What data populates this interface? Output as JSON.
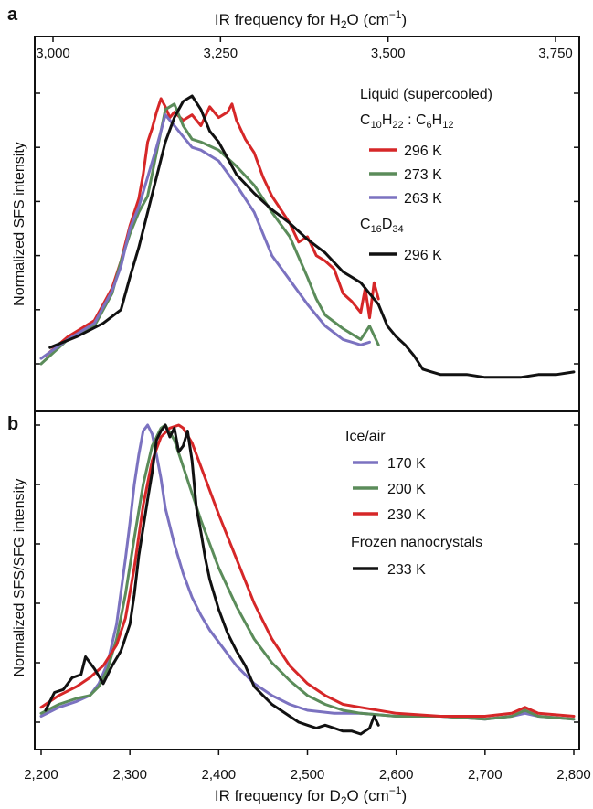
{
  "chart_data": [
    {
      "panel_label": "a",
      "type": "line",
      "top_axis_label": "IR frequency for H2O (cm−1)",
      "top_ticks": [
        "3,000",
        "3,250",
        "3,500",
        "3,750"
      ],
      "top_tick_values": [
        3000,
        3250,
        3500,
        3750
      ],
      "ylabel": "Normalized SFS intensity",
      "xlim": [
        2200,
        2800
      ],
      "ylim": [
        0,
        1.05
      ],
      "legend": {
        "heading1": "Liquid (supercooled)",
        "heading2": {
          "a": "C",
          "a_sub": "10",
          "b": "H",
          "b_sub": "22",
          "c": " : C",
          "c_sub": "6",
          "d": "H",
          "d_sub": "12"
        },
        "heading3": {
          "a": "C",
          "a_sub": "16",
          "b": "D",
          "b_sub": "34"
        }
      },
      "series": [
        {
          "name": "296 K",
          "color": "#d62728",
          "x": [
            2205,
            2230,
            2260,
            2280,
            2290,
            2300,
            2310,
            2315,
            2320,
            2325,
            2330,
            2335,
            2340,
            2345,
            2350,
            2360,
            2370,
            2380,
            2390,
            2400,
            2410,
            2415,
            2420,
            2430,
            2440,
            2450,
            2460,
            2470,
            2480,
            2490,
            2500,
            2510,
            2520,
            2530,
            2540,
            2550,
            2560,
            2565,
            2570,
            2575,
            2580
          ],
          "y": [
            0.03,
            0.1,
            0.16,
            0.28,
            0.38,
            0.51,
            0.61,
            0.7,
            0.82,
            0.87,
            0.93,
            0.98,
            0.95,
            0.91,
            0.93,
            0.9,
            0.92,
            0.88,
            0.95,
            0.91,
            0.93,
            0.96,
            0.9,
            0.83,
            0.78,
            0.69,
            0.62,
            0.57,
            0.52,
            0.45,
            0.47,
            0.4,
            0.38,
            0.35,
            0.26,
            0.23,
            0.19,
            0.28,
            0.17,
            0.3,
            0.24
          ]
        },
        {
          "name": "273 K",
          "color": "#5b8c5a",
          "x": [
            2200,
            2230,
            2260,
            2280,
            2290,
            2300,
            2310,
            2320,
            2330,
            2340,
            2350,
            2360,
            2370,
            2380,
            2400,
            2420,
            2440,
            2460,
            2480,
            2500,
            2510,
            2520,
            2540,
            2560,
            2570,
            2580
          ],
          "y": [
            0.0,
            0.09,
            0.14,
            0.26,
            0.38,
            0.48,
            0.56,
            0.62,
            0.78,
            0.94,
            0.96,
            0.88,
            0.83,
            0.82,
            0.79,
            0.73,
            0.66,
            0.56,
            0.47,
            0.32,
            0.24,
            0.18,
            0.13,
            0.09,
            0.14,
            0.07
          ]
        },
        {
          "name": "263 K",
          "color": "#7b72c0",
          "x": [
            2200,
            2230,
            2260,
            2280,
            2290,
            2300,
            2310,
            2320,
            2330,
            2340,
            2350,
            2360,
            2370,
            2380,
            2400,
            2420,
            2440,
            2460,
            2480,
            2500,
            2520,
            2540,
            2560,
            2570
          ],
          "y": [
            0.02,
            0.09,
            0.15,
            0.27,
            0.36,
            0.5,
            0.58,
            0.69,
            0.8,
            0.92,
            0.88,
            0.84,
            0.8,
            0.79,
            0.75,
            0.66,
            0.56,
            0.4,
            0.31,
            0.22,
            0.14,
            0.09,
            0.07,
            0.08
          ]
        },
        {
          "name": "296 K",
          "color": "#111111",
          "x": [
            2210,
            2240,
            2270,
            2290,
            2300,
            2310,
            2320,
            2330,
            2340,
            2350,
            2360,
            2370,
            2380,
            2390,
            2400,
            2420,
            2440,
            2460,
            2480,
            2500,
            2520,
            2540,
            2560,
            2580,
            2590,
            2600,
            2610,
            2620,
            2630,
            2640,
            2650,
            2660,
            2680,
            2700,
            2720,
            2740,
            2760,
            2780,
            2800
          ],
          "y": [
            0.06,
            0.1,
            0.15,
            0.2,
            0.32,
            0.43,
            0.56,
            0.69,
            0.82,
            0.91,
            0.97,
            0.99,
            0.94,
            0.86,
            0.82,
            0.7,
            0.63,
            0.57,
            0.52,
            0.46,
            0.41,
            0.34,
            0.3,
            0.22,
            0.14,
            0.1,
            0.07,
            0.03,
            -0.02,
            -0.03,
            -0.04,
            -0.04,
            -0.04,
            -0.05,
            -0.05,
            -0.05,
            -0.04,
            -0.04,
            -0.03
          ]
        }
      ]
    },
    {
      "panel_label": "b",
      "type": "line",
      "xlabel": "IR frequency for D2O (cm−1)",
      "ylabel": "Normalized SFS/SFG intensity",
      "x_ticks": [
        "2,200",
        "2,300",
        "2,400",
        "2,500",
        "2,600",
        "2,700",
        "2,800"
      ],
      "x_tick_values": [
        2200,
        2300,
        2400,
        2500,
        2600,
        2700,
        2800
      ],
      "xlim": [
        2200,
        2800
      ],
      "ylim": [
        0,
        1.05
      ],
      "legend": {
        "heading1": "Ice/air",
        "heading2": "Frozen nanocrystals"
      },
      "series": [
        {
          "name": "170 K",
          "color": "#7b72c0",
          "x": [
            2200,
            2220,
            2240,
            2255,
            2265,
            2275,
            2285,
            2295,
            2300,
            2305,
            2310,
            2315,
            2320,
            2325,
            2330,
            2335,
            2340,
            2350,
            2360,
            2370,
            2380,
            2390,
            2400,
            2420,
            2440,
            2460,
            2480,
            2500,
            2530,
            2560,
            2600,
            2650,
            2700,
            2730,
            2745,
            2760,
            2800
          ],
          "y": [
            0.02,
            0.05,
            0.07,
            0.09,
            0.13,
            0.2,
            0.33,
            0.55,
            0.67,
            0.8,
            0.9,
            0.98,
            1.0,
            0.97,
            0.9,
            0.82,
            0.72,
            0.6,
            0.5,
            0.42,
            0.36,
            0.31,
            0.27,
            0.19,
            0.13,
            0.09,
            0.06,
            0.04,
            0.03,
            0.03,
            0.02,
            0.02,
            0.01,
            0.02,
            0.03,
            0.02,
            0.01
          ]
        },
        {
          "name": "200 K",
          "color": "#5b8c5a",
          "x": [
            2200,
            2220,
            2240,
            2255,
            2265,
            2275,
            2285,
            2295,
            2305,
            2315,
            2325,
            2335,
            2340,
            2350,
            2360,
            2370,
            2380,
            2390,
            2400,
            2420,
            2440,
            2460,
            2480,
            2500,
            2520,
            2540,
            2560,
            2600,
            2650,
            2700,
            2730,
            2745,
            2760,
            2800
          ],
          "y": [
            0.03,
            0.06,
            0.08,
            0.09,
            0.12,
            0.18,
            0.28,
            0.43,
            0.62,
            0.8,
            0.93,
            0.99,
            1.0,
            0.95,
            0.86,
            0.77,
            0.68,
            0.6,
            0.52,
            0.39,
            0.28,
            0.2,
            0.14,
            0.09,
            0.06,
            0.04,
            0.03,
            0.02,
            0.02,
            0.01,
            0.02,
            0.04,
            0.02,
            0.01
          ]
        },
        {
          "name": "230 K",
          "color": "#d62728",
          "x": [
            2200,
            2220,
            2240,
            2255,
            2270,
            2285,
            2295,
            2305,
            2315,
            2325,
            2335,
            2345,
            2355,
            2360,
            2370,
            2380,
            2390,
            2400,
            2420,
            2440,
            2460,
            2480,
            2500,
            2520,
            2540,
            2560,
            2600,
            2650,
            2700,
            2730,
            2745,
            2760,
            2800
          ],
          "y": [
            0.05,
            0.09,
            0.12,
            0.15,
            0.19,
            0.26,
            0.35,
            0.52,
            0.73,
            0.88,
            0.96,
            0.99,
            1.0,
            0.99,
            0.94,
            0.86,
            0.78,
            0.7,
            0.55,
            0.4,
            0.28,
            0.19,
            0.13,
            0.09,
            0.06,
            0.05,
            0.03,
            0.02,
            0.02,
            0.03,
            0.05,
            0.03,
            0.02
          ]
        },
        {
          "name": "233 K",
          "color": "#111111",
          "x": [
            2205,
            2215,
            2225,
            2235,
            2245,
            2250,
            2260,
            2270,
            2280,
            2290,
            2300,
            2305,
            2310,
            2320,
            2325,
            2330,
            2335,
            2340,
            2345,
            2350,
            2355,
            2360,
            2365,
            2370,
            2375,
            2380,
            2385,
            2390,
            2400,
            2410,
            2420,
            2430,
            2440,
            2450,
            2460,
            2470,
            2480,
            2490,
            2500,
            2510,
            2520,
            2530,
            2540,
            2550,
            2560,
            2570,
            2575,
            2580
          ],
          "y": [
            0.04,
            0.1,
            0.11,
            0.15,
            0.16,
            0.22,
            0.18,
            0.13,
            0.19,
            0.24,
            0.33,
            0.43,
            0.56,
            0.75,
            0.84,
            0.95,
            0.98,
            1.0,
            0.96,
            0.99,
            0.91,
            0.93,
            0.98,
            0.88,
            0.72,
            0.64,
            0.55,
            0.48,
            0.38,
            0.3,
            0.24,
            0.19,
            0.12,
            0.09,
            0.06,
            0.04,
            0.02,
            0.0,
            -0.01,
            -0.02,
            -0.01,
            -0.02,
            -0.03,
            -0.03,
            -0.04,
            -0.02,
            0.02,
            -0.01
          ]
        }
      ]
    }
  ]
}
